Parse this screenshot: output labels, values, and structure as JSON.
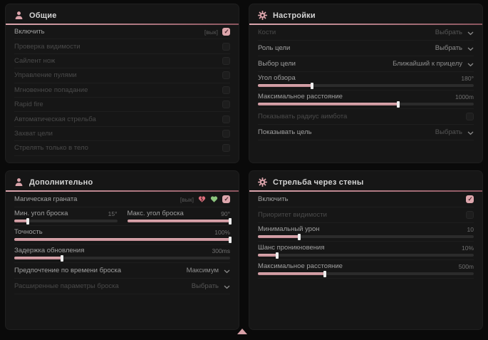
{
  "ui": {
    "accent": "#dda6ac",
    "enable_tag": "[вык]"
  },
  "general": {
    "title": "Общие",
    "enable": {
      "label": "Включить",
      "tag": "[вык]"
    },
    "vis_check": {
      "label": "Проверка видимости"
    },
    "silent_knife": {
      "label": "Сайлент нож"
    },
    "bullet_ctrl": {
      "label": "Управление пулями"
    },
    "instant_hit": {
      "label": "Мгновенное попадание"
    },
    "rapid_fire": {
      "label": "Rapid fire"
    },
    "auto_fire": {
      "label": "Автоматическая стрельба"
    },
    "target_lock": {
      "label": "Захват цели"
    },
    "body_only": {
      "label": "Стрелять только в тело"
    }
  },
  "settings": {
    "title": "Настройки",
    "bones": {
      "label": "Кости",
      "value": "Выбрать"
    },
    "target_role": {
      "label": "Роль цели",
      "value": "Выбрать"
    },
    "target_pick": {
      "label": "Выбор цели",
      "value": "Ближайший к прицелу"
    },
    "fov": {
      "label": "Угол обзора",
      "value": "180°",
      "fill": 25
    },
    "max_distance": {
      "label": "Максимальное расстояние",
      "value": "1000m",
      "fill": 65
    },
    "show_radius": {
      "label": "Показывать радиус аимбота"
    },
    "show_target": {
      "label": "Показывать цель",
      "value": "Выбрать"
    }
  },
  "additional": {
    "title": "Дополнительно",
    "magic_grenade": {
      "label": "Магическая граната",
      "tag": "[вык]"
    },
    "min_angle": {
      "label": "Мин. угол броска",
      "value": "15°",
      "fill": 13
    },
    "max_angle": {
      "label": "Макс. угол броска",
      "value": "90°",
      "fill": 100
    },
    "accuracy": {
      "label": "Точность",
      "value": "100%",
      "fill": 100
    },
    "update_delay": {
      "label": "Задержка обновления",
      "value": "300ms",
      "fill": 22
    },
    "throw_time": {
      "label": "Предпочтение по времени броска",
      "value": "Максимум"
    },
    "throw_params": {
      "label": "Расширенные параметры броска",
      "value": "Выбрать"
    }
  },
  "wallbang": {
    "title": "Стрельба через стены",
    "enable": {
      "label": "Включить"
    },
    "vis_priority": {
      "label": "Приоритет видимости"
    },
    "min_damage": {
      "label": "Минимальный урон",
      "value": "10",
      "fill": 19
    },
    "pen_chance": {
      "label": "Шанс проникновения",
      "value": "10%",
      "fill": 9
    },
    "max_distance": {
      "label": "Максимальное расстояние",
      "value": "500m",
      "fill": 31
    }
  }
}
